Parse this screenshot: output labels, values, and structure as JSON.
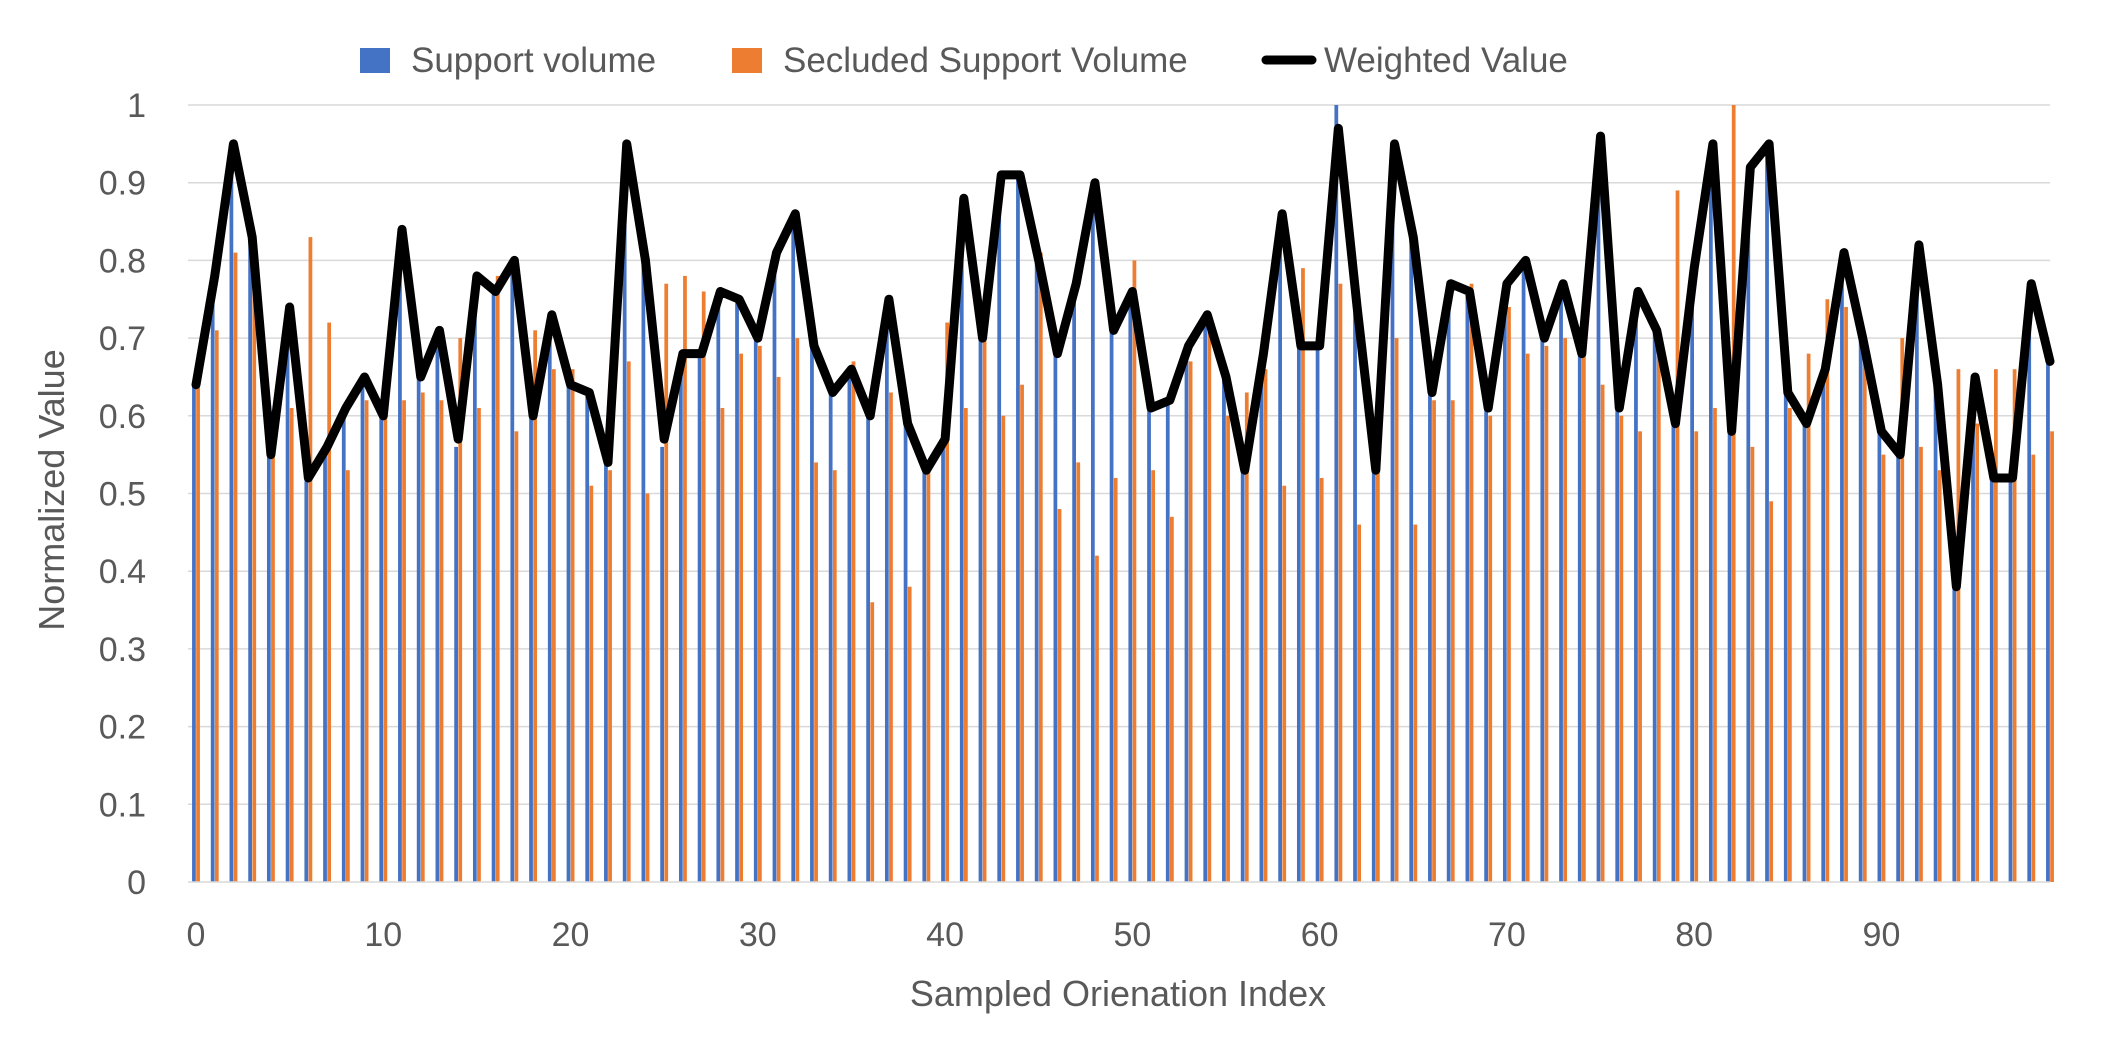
{
  "chart_data": {
    "type": "bar",
    "title": "",
    "xlabel": "Sampled Orienation Index",
    "ylabel": "Normalized Value",
    "ylim": [
      0,
      1
    ],
    "xlim": [
      0,
      99
    ],
    "yticks": [
      "0",
      "0.1",
      "0.2",
      "0.3",
      "0.4",
      "0.5",
      "0.6",
      "0.7",
      "0.8",
      "0.9",
      "1"
    ],
    "xticks": [
      "0",
      "10",
      "20",
      "30",
      "40",
      "50",
      "60",
      "70",
      "80",
      "90"
    ],
    "grid": true,
    "legend_position": "top",
    "x": [
      0,
      1,
      2,
      3,
      4,
      5,
      6,
      7,
      8,
      9,
      10,
      11,
      12,
      13,
      14,
      15,
      16,
      17,
      18,
      19,
      20,
      21,
      22,
      23,
      24,
      25,
      26,
      27,
      28,
      29,
      30,
      31,
      32,
      33,
      34,
      35,
      36,
      37,
      38,
      39,
      40,
      41,
      42,
      43,
      44,
      45,
      46,
      47,
      48,
      49,
      50,
      51,
      52,
      53,
      54,
      55,
      56,
      57,
      58,
      59,
      60,
      61,
      62,
      63,
      64,
      65,
      66,
      67,
      68,
      69,
      70,
      71,
      72,
      73,
      74,
      75,
      76,
      77,
      78,
      79,
      80,
      81,
      82,
      83,
      84,
      85,
      86,
      87,
      88,
      89,
      90,
      91,
      92,
      93,
      94,
      95,
      96,
      97,
      98,
      99
    ],
    "series": [
      {
        "name": "Support volume",
        "type": "bar",
        "color": "#4472C4",
        "values": [
          0.64,
          0.75,
          0.95,
          0.83,
          0.55,
          0.7,
          0.52,
          0.56,
          0.6,
          0.64,
          0.6,
          0.84,
          0.65,
          0.71,
          0.56,
          0.78,
          0.76,
          0.8,
          0.6,
          0.73,
          0.64,
          0.63,
          0.54,
          0.95,
          0.8,
          0.56,
          0.68,
          0.68,
          0.76,
          0.75,
          0.7,
          0.81,
          0.86,
          0.69,
          0.63,
          0.66,
          0.6,
          0.75,
          0.59,
          0.53,
          0.56,
          0.88,
          0.7,
          0.91,
          0.91,
          0.8,
          0.68,
          0.77,
          0.9,
          0.71,
          0.76,
          0.61,
          0.62,
          0.69,
          0.73,
          0.65,
          0.53,
          0.68,
          0.86,
          0.69,
          0.69,
          1.0,
          0.74,
          0.53,
          0.95,
          0.83,
          0.63,
          0.77,
          0.76,
          0.61,
          0.77,
          0.8,
          0.7,
          0.77,
          0.68,
          0.96,
          0.61,
          0.76,
          0.71,
          0.59,
          0.79,
          0.95,
          0.58,
          0.92,
          0.95,
          0.63,
          0.59,
          0.66,
          0.81,
          0.7,
          0.58,
          0.55,
          0.82,
          0.64,
          0.38,
          0.65,
          0.52,
          0.52,
          0.77,
          0.67
        ]
      },
      {
        "name": "Secluded Support Volume",
        "type": "bar",
        "color": "#ED7D31",
        "values": [
          0.64,
          0.71,
          0.81,
          0.79,
          0.55,
          0.61,
          0.83,
          0.72,
          0.53,
          0.62,
          0.6,
          0.62,
          0.63,
          0.62,
          0.7,
          0.61,
          0.78,
          0.58,
          0.71,
          0.66,
          0.66,
          0.51,
          0.53,
          0.67,
          0.5,
          0.77,
          0.78,
          0.76,
          0.61,
          0.68,
          0.69,
          0.65,
          0.7,
          0.54,
          0.53,
          0.67,
          0.36,
          0.63,
          0.38,
          0.53,
          0.72,
          0.61,
          0.7,
          0.6,
          0.64,
          0.81,
          0.48,
          0.54,
          0.42,
          0.52,
          0.8,
          0.53,
          0.47,
          0.67,
          0.73,
          0.6,
          0.63,
          0.66,
          0.51,
          0.79,
          0.52,
          0.77,
          0.46,
          0.53,
          0.7,
          0.46,
          0.62,
          0.62,
          0.77,
          0.6,
          0.74,
          0.68,
          0.69,
          0.7,
          0.68,
          0.64,
          0.6,
          0.58,
          0.7,
          0.89,
          0.58,
          0.61,
          1.0,
          0.56,
          0.49,
          0.61,
          0.68,
          0.75,
          0.74,
          0.68,
          0.55,
          0.7,
          0.56,
          0.53,
          0.66,
          0.59,
          0.66,
          0.66,
          0.55,
          0.58
        ]
      },
      {
        "name": "Weighted Value",
        "type": "line",
        "color": "#000000",
        "values": [
          0.64,
          0.78,
          0.95,
          0.83,
          0.55,
          0.74,
          0.52,
          0.56,
          0.61,
          0.65,
          0.6,
          0.84,
          0.65,
          0.71,
          0.57,
          0.78,
          0.76,
          0.8,
          0.6,
          0.73,
          0.64,
          0.63,
          0.54,
          0.95,
          0.8,
          0.57,
          0.68,
          0.68,
          0.76,
          0.75,
          0.7,
          0.81,
          0.86,
          0.69,
          0.63,
          0.66,
          0.6,
          0.75,
          0.59,
          0.53,
          0.57,
          0.88,
          0.7,
          0.91,
          0.91,
          0.8,
          0.68,
          0.77,
          0.9,
          0.71,
          0.76,
          0.61,
          0.62,
          0.69,
          0.73,
          0.65,
          0.53,
          0.68,
          0.86,
          0.69,
          0.69,
          0.97,
          0.74,
          0.53,
          0.95,
          0.83,
          0.63,
          0.77,
          0.76,
          0.61,
          0.77,
          0.8,
          0.7,
          0.77,
          0.68,
          0.96,
          0.61,
          0.76,
          0.71,
          0.59,
          0.79,
          0.95,
          0.58,
          0.92,
          0.95,
          0.63,
          0.59,
          0.66,
          0.81,
          0.7,
          0.58,
          0.55,
          0.82,
          0.64,
          0.38,
          0.65,
          0.52,
          0.52,
          0.77,
          0.67
        ]
      }
    ]
  }
}
